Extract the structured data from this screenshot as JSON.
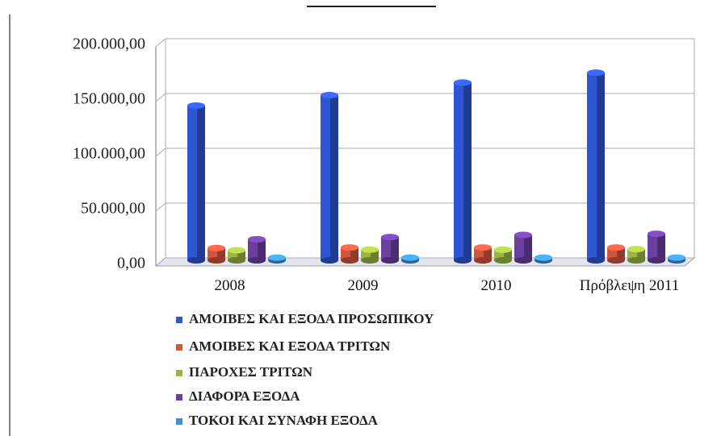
{
  "chart_data": {
    "type": "bar3d",
    "categories": [
      "2008",
      "2009",
      "2010",
      "Πρόβλεψη 2011"
    ],
    "series": [
      {
        "name": "ΑΜΟΙΒΕΣ ΚΑΙ ΕΞΟΔΑ ΠΡΟΣΩΠΙΚΟΥ",
        "color": "#2f55d4",
        "values": [
          139000,
          148500,
          160000,
          169000
        ]
      },
      {
        "name": "ΑΜΟΙΒΕΣ ΚΑΙ ΕΞΟΔΑ ΤΡΙΤΩΝ",
        "color": "#d2553e",
        "values": [
          9000,
          9500,
          9500,
          9500
        ]
      },
      {
        "name": "ΠΑΡΟΧΕΣ ΤΡΙΤΩΝ",
        "color": "#9cb444",
        "values": [
          7000,
          7500,
          7500,
          8000
        ]
      },
      {
        "name": "ΔΙΑΦΟΡΑ ΕΞΟΔΑ",
        "color": "#6b3fa0",
        "values": [
          17000,
          19000,
          21000,
          22000
        ]
      },
      {
        "name": "ΤΟΚΟΙ ΚΑΙ ΣΥΝΑΦΗ ΕΞΟΔΑ",
        "color": "#3d8fd6",
        "values": [
          300,
          300,
          300,
          300
        ]
      }
    ],
    "ylim": [
      0,
      200000
    ],
    "yticks": [
      {
        "value": 0,
        "label": "0,00"
      },
      {
        "value": 50000,
        "label": "50.000,00"
      },
      {
        "value": 100000,
        "label": "100.000,00"
      },
      {
        "value": 150000,
        "label": "150.000,00"
      },
      {
        "value": 200000,
        "label": "200.000,00"
      }
    ],
    "grid": true
  }
}
